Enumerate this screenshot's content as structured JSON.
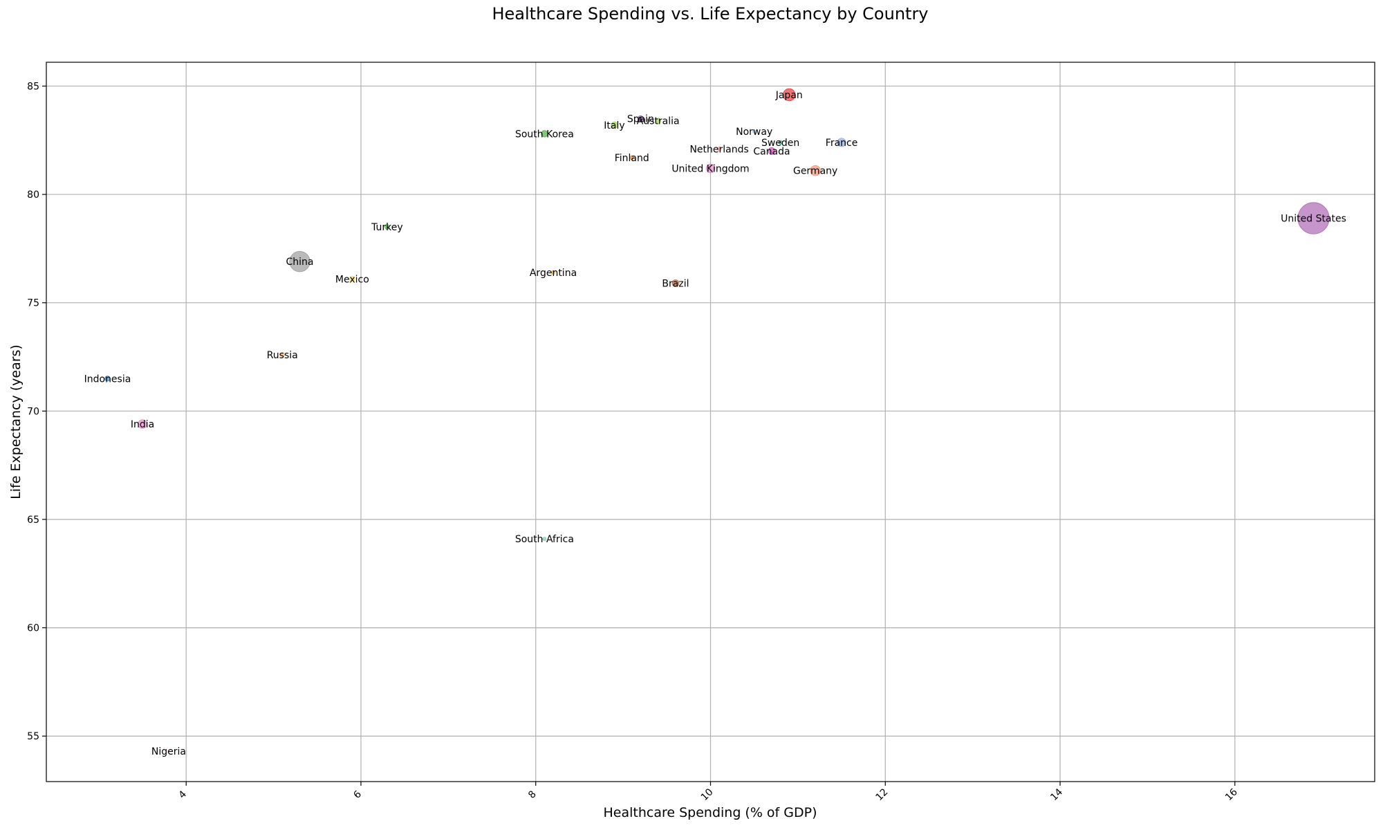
{
  "chart_data": {
    "type": "scatter",
    "title": "Healthcare Spending vs. Life Expectancy by Country",
    "xlabel": "Healthcare Spending (% of GDP)",
    "ylabel": "Life Expectancy (years)",
    "xlim": [
      2.4,
      17.6
    ],
    "ylim": [
      52.9,
      86.1
    ],
    "xticks": [
      "4",
      "6",
      "8",
      "10",
      "12",
      "14",
      "16"
    ],
    "yticks": [
      "55",
      "60",
      "65",
      "70",
      "75",
      "80",
      "85"
    ],
    "grid": true,
    "points": [
      {
        "label": "United States",
        "x": 16.9,
        "y": 78.9,
        "size": 330,
        "color": "#9e4fa8"
      },
      {
        "label": "China",
        "x": 5.3,
        "y": 76.9,
        "size": 140,
        "color": "#8c8c8c"
      },
      {
        "label": "Japan",
        "x": 10.9,
        "y": 84.6,
        "size": 50,
        "color": "#e31a1c"
      },
      {
        "label": "Germany",
        "x": 11.2,
        "y": 81.1,
        "size": 35,
        "color": "#f4845f"
      },
      {
        "label": "India",
        "x": 3.5,
        "y": 69.4,
        "size": 26,
        "color": "#e377c2"
      },
      {
        "label": "United Kingdom",
        "x": 10.0,
        "y": 81.2,
        "size": 26,
        "color": "#e377c2"
      },
      {
        "label": "France",
        "x": 11.5,
        "y": 82.4,
        "size": 24,
        "color": "#7f9fd6"
      },
      {
        "label": "Brazil",
        "x": 9.6,
        "y": 75.9,
        "size": 16,
        "color": "#a65628"
      },
      {
        "label": "Canada",
        "x": 10.7,
        "y": 82.0,
        "size": 16,
        "color": "#d030c0"
      },
      {
        "label": "South Korea",
        "x": 8.1,
        "y": 82.8,
        "size": 14,
        "color": "#33a02c"
      },
      {
        "label": "Italy",
        "x": 8.9,
        "y": 83.2,
        "size": 14,
        "color": "#9acd32"
      },
      {
        "label": "Spain",
        "x": 9.2,
        "y": 83.5,
        "size": 11,
        "color": "#7b4fa0"
      },
      {
        "label": "Australia",
        "x": 9.4,
        "y": 83.4,
        "size": 10,
        "color": "#9acd32"
      },
      {
        "label": "Indonesia",
        "x": 3.1,
        "y": 71.5,
        "size": 9,
        "color": "#1f78b4"
      },
      {
        "label": "Mexico",
        "x": 5.9,
        "y": 76.1,
        "size": 9,
        "color": "#ffd92f"
      },
      {
        "label": "Turkey",
        "x": 6.3,
        "y": 78.5,
        "size": 8,
        "color": "#4daf4a"
      },
      {
        "label": "Russia",
        "x": 5.1,
        "y": 72.6,
        "size": 8,
        "color": "#fdb462"
      },
      {
        "label": "Netherlands",
        "x": 10.1,
        "y": 82.1,
        "size": 6,
        "color": "#fb9a99"
      },
      {
        "label": "Sweden",
        "x": 10.8,
        "y": 82.4,
        "size": 5,
        "color": "#1b9e77"
      },
      {
        "label": "Argentina",
        "x": 8.2,
        "y": 76.4,
        "size": 5,
        "color": "#e6ab02"
      },
      {
        "label": "Finland",
        "x": 9.1,
        "y": 81.7,
        "size": 5,
        "color": "#ff7f00"
      },
      {
        "label": "Norway",
        "x": 10.5,
        "y": 82.9,
        "size": 4,
        "color": "#a6cee3"
      },
      {
        "label": "South Africa",
        "x": 8.1,
        "y": 64.1,
        "size": 4,
        "color": "#66c2a5"
      },
      {
        "label": "Nigeria",
        "x": 3.8,
        "y": 54.3,
        "size": 3,
        "color": "#fccde5"
      }
    ]
  }
}
